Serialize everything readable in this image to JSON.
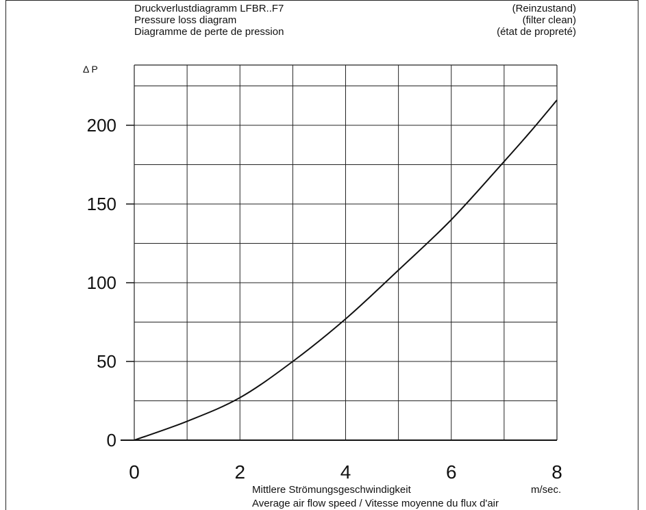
{
  "header": {
    "title_lines": [
      "Druckverlustdiagramm LFBR..F7",
      "Pressure loss diagram",
      "Diagramme de perte de pression"
    ],
    "condition_lines": [
      "(Reinzustand)",
      "(filter clean)",
      "(état de propreté)"
    ]
  },
  "chart_data": {
    "type": "line",
    "ylabel": "Δ P",
    "xlabel_line1": "Mittlere Strömungsgeschwindigkeit",
    "xlabel_unit": "m/sec.",
    "xlabel_line2": "Average air flow speed  /  Vitesse moyenne du flux d'air",
    "xlim": [
      0,
      8
    ],
    "ylim": [
      0,
      230
    ],
    "x_ticks": [
      "0",
      "2",
      "4",
      "6",
      "8"
    ],
    "y_ticks": [
      "0",
      "50",
      "100",
      "150",
      "200"
    ],
    "grid": true,
    "series": [
      {
        "x": [
          0,
          1,
          2,
          3,
          4,
          5,
          6,
          7,
          7.5,
          8
        ],
        "values": [
          0,
          12,
          27,
          50,
          77,
          108,
          140,
          177,
          196,
          216
        ]
      }
    ]
  }
}
